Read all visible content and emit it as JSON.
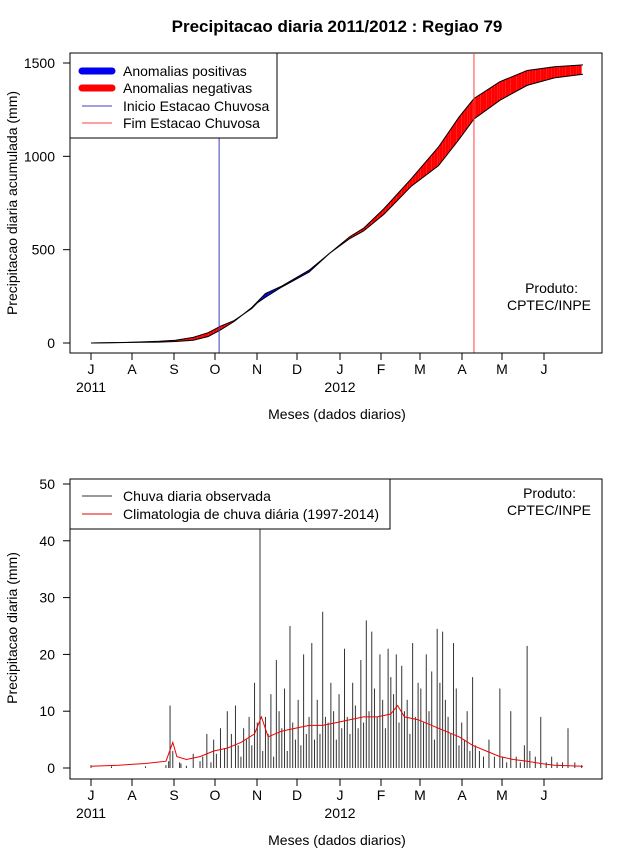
{
  "colors": {
    "positive": "#0000ee",
    "negative": "#ff0000",
    "onset": "#4040c0",
    "end": "#ff4040",
    "obs_bar": "#333333",
    "clim_line": "#ee0000"
  },
  "chart_data": [
    {
      "type": "area",
      "title": "Precipitacao diaria 2011/2012 : Regiao 79",
      "xlabel": "Meses (dados diarios)",
      "ylabel": "Precipitacao diaria acumulada (mm)",
      "x_ticks": [
        "J",
        "A",
        "S",
        "O",
        "N",
        "D",
        "J",
        "F",
        "M",
        "A",
        "M",
        "J"
      ],
      "x_year_labels": [
        "2011",
        "2012"
      ],
      "ylim": [
        0,
        1500
      ],
      "y_ticks": [
        "0",
        "500",
        "1000",
        "1500"
      ],
      "legend": [
        "Anomalias positivas",
        "Anomalias negativas",
        "Inicio Estacao Chuvosa",
        "Fim Estacao Chuvosa"
      ],
      "legend_position": "top-left",
      "annotation": [
        "Produto:",
        "CPTEC/INPE"
      ],
      "onset_day": 94,
      "end_day": 281,
      "series": [
        {
          "name": "observed_cumulative_day_value",
          "values": [
            [
              0,
              0
            ],
            [
              30,
              3
            ],
            [
              50,
              5
            ],
            [
              62,
              8
            ],
            [
              75,
              15
            ],
            [
              86,
              35
            ],
            [
              95,
              70
            ],
            [
              105,
              115
            ],
            [
              118,
              190
            ],
            [
              122,
              220
            ],
            [
              128,
              265
            ],
            [
              140,
              305
            ],
            [
              160,
              390
            ],
            [
              175,
              480
            ],
            [
              190,
              560
            ],
            [
              200,
              600
            ],
            [
              215,
              690
            ],
            [
              235,
              840
            ],
            [
              255,
              950
            ],
            [
              270,
              1090
            ],
            [
              281,
              1200
            ],
            [
              300,
              1300
            ],
            [
              320,
              1380
            ],
            [
              340,
              1420
            ],
            [
              361,
              1440
            ]
          ]
        },
        {
          "name": "climatology_cumulative_day_value",
          "values": [
            [
              0,
              0
            ],
            [
              30,
              4
            ],
            [
              50,
              9
            ],
            [
              62,
              15
            ],
            [
              75,
              30
            ],
            [
              86,
              55
            ],
            [
              95,
              90
            ],
            [
              105,
              120
            ],
            [
              118,
              185
            ],
            [
              122,
              215
            ],
            [
              128,
              245
            ],
            [
              140,
              300
            ],
            [
              160,
              380
            ],
            [
              175,
              480
            ],
            [
              190,
              570
            ],
            [
              200,
              615
            ],
            [
              215,
              720
            ],
            [
              235,
              880
            ],
            [
              255,
              1050
            ],
            [
              270,
              1210
            ],
            [
              281,
              1310
            ],
            [
              300,
              1400
            ],
            [
              320,
              1460
            ],
            [
              340,
              1480
            ],
            [
              361,
              1490
            ]
          ]
        }
      ]
    },
    {
      "type": "bar",
      "title": "",
      "xlabel": "Meses (dados diarios)",
      "ylabel": "Precipitacao diaria (mm)",
      "x_ticks": [
        "J",
        "A",
        "S",
        "O",
        "N",
        "D",
        "J",
        "F",
        "M",
        "A",
        "M",
        "J"
      ],
      "x_year_labels": [
        "2011",
        "2012"
      ],
      "ylim": [
        0,
        50
      ],
      "y_ticks": [
        "0",
        "10",
        "20",
        "30",
        "40",
        "50"
      ],
      "legend": [
        "Chuva diaria observada",
        "Climatologia de chuva diária (1997-2014)"
      ],
      "legend_position": "top-left",
      "annotation": [
        "Produto:",
        "CPTEC/INPE"
      ],
      "series": [
        {
          "name": "Chuva diaria observada (day, mm)",
          "values": [
            [
              0,
              0.5
            ],
            [
              15,
              0.3
            ],
            [
              40,
              0.3
            ],
            [
              55,
              0.5
            ],
            [
              57,
              1.2
            ],
            [
              58,
              11
            ],
            [
              60,
              3
            ],
            [
              65,
              1
            ],
            [
              66,
              0.8
            ],
            [
              70,
              0.4
            ],
            [
              75,
              2.5
            ],
            [
              80,
              1.2
            ],
            [
              82,
              2
            ],
            [
              85,
              6
            ],
            [
              88,
              1
            ],
            [
              90,
              5
            ],
            [
              92,
              2.5
            ],
            [
              95,
              7
            ],
            [
              98,
              3.5
            ],
            [
              100,
              10
            ],
            [
              103,
              6
            ],
            [
              106,
              11
            ],
            [
              108,
              4
            ],
            [
              110,
              2
            ],
            [
              112,
              7
            ],
            [
              114,
              5
            ],
            [
              116,
              9
            ],
            [
              118,
              4
            ],
            [
              120,
              15
            ],
            [
              122,
              8
            ],
            [
              124,
              43
            ],
            [
              126,
              3
            ],
            [
              128,
              9
            ],
            [
              130,
              6
            ],
            [
              132,
              13
            ],
            [
              134,
              2
            ],
            [
              136,
              19
            ],
            [
              138,
              10
            ],
            [
              140,
              7
            ],
            [
              142,
              14
            ],
            [
              144,
              3
            ],
            [
              146,
              25
            ],
            [
              148,
              8
            ],
            [
              150,
              5
            ],
            [
              152,
              12
            ],
            [
              154,
              4
            ],
            [
              156,
              20
            ],
            [
              158,
              6
            ],
            [
              160,
              9
            ],
            [
              162,
              22
            ],
            [
              164,
              5
            ],
            [
              166,
              12
            ],
            [
              168,
              6
            ],
            [
              170,
              27.5
            ],
            [
              172,
              9
            ],
            [
              174,
              8
            ],
            [
              176,
              15
            ],
            [
              178,
              10
            ],
            [
              180,
              5
            ],
            [
              182,
              13
            ],
            [
              184,
              7
            ],
            [
              186,
              21
            ],
            [
              188,
              9
            ],
            [
              190,
              6
            ],
            [
              192,
              15
            ],
            [
              194,
              11
            ],
            [
              196,
              7
            ],
            [
              198,
              19
            ],
            [
              200,
              8
            ],
            [
              202,
              26
            ],
            [
              204,
              10
            ],
            [
              206,
              24
            ],
            [
              208,
              14
            ],
            [
              210,
              9
            ],
            [
              212,
              20
            ],
            [
              214,
              12
            ],
            [
              216,
              7
            ],
            [
              218,
              21
            ],
            [
              220,
              16
            ],
            [
              222,
              13
            ],
            [
              224,
              20
            ],
            [
              226,
              8
            ],
            [
              228,
              18
            ],
            [
              230,
              10
            ],
            [
              232,
              12
            ],
            [
              234,
              6
            ],
            [
              236,
              22
            ],
            [
              238,
              9
            ],
            [
              240,
              15
            ],
            [
              242,
              14
            ],
            [
              244,
              8
            ],
            [
              246,
              20
            ],
            [
              248,
              10
            ],
            [
              250,
              17
            ],
            [
              252,
              5
            ],
            [
              254,
              24.5
            ],
            [
              256,
              15
            ],
            [
              258,
              24
            ],
            [
              260,
              12
            ],
            [
              262,
              9
            ],
            [
              264,
              6
            ],
            [
              266,
              22
            ],
            [
              268,
              14
            ],
            [
              270,
              4
            ],
            [
              272,
              8
            ],
            [
              274,
              5
            ],
            [
              276,
              10
            ],
            [
              278,
              3
            ],
            [
              280,
              16
            ],
            [
              282,
              4
            ],
            [
              285,
              3
            ],
            [
              288,
              2
            ],
            [
              292,
              5
            ],
            [
              296,
              2
            ],
            [
              300,
              14
            ],
            [
              302,
              2
            ],
            [
              305,
              1
            ],
            [
              308,
              10
            ],
            [
              312,
              2
            ],
            [
              315,
              1
            ],
            [
              318,
              4
            ],
            [
              320,
              21.5
            ],
            [
              322,
              3
            ],
            [
              326,
              2
            ],
            [
              330,
              9
            ],
            [
              334,
              1
            ],
            [
              338,
              2
            ],
            [
              342,
              1
            ],
            [
              346,
              1
            ],
            [
              350,
              7
            ],
            [
              355,
              1
            ],
            [
              360,
              0.5
            ]
          ]
        },
        {
          "name": "Climatologia de chuva diária (1997-2014) (day, mm)",
          "values": [
            [
              0,
              0.3
            ],
            [
              20,
              0.5
            ],
            [
              40,
              0.8
            ],
            [
              55,
              1.2
            ],
            [
              60,
              4.5
            ],
            [
              63,
              2
            ],
            [
              70,
              1.5
            ],
            [
              80,
              2
            ],
            [
              90,
              3
            ],
            [
              100,
              3.5
            ],
            [
              110,
              4.5
            ],
            [
              120,
              6
            ],
            [
              125,
              9
            ],
            [
              130,
              5.5
            ],
            [
              140,
              6.5
            ],
            [
              150,
              7
            ],
            [
              160,
              7.5
            ],
            [
              170,
              7.5
            ],
            [
              180,
              8
            ],
            [
              190,
              8.5
            ],
            [
              200,
              9
            ],
            [
              210,
              9
            ],
            [
              220,
              9.5
            ],
            [
              225,
              11
            ],
            [
              230,
              9
            ],
            [
              240,
              8.5
            ],
            [
              250,
              7.5
            ],
            [
              260,
              6.5
            ],
            [
              270,
              5.5
            ],
            [
              280,
              4
            ],
            [
              290,
              3
            ],
            [
              300,
              2
            ],
            [
              310,
              1.5
            ],
            [
              320,
              1.2
            ],
            [
              330,
              0.8
            ],
            [
              340,
              0.5
            ],
            [
              350,
              0.4
            ],
            [
              361,
              0.3
            ]
          ]
        }
      ]
    }
  ]
}
